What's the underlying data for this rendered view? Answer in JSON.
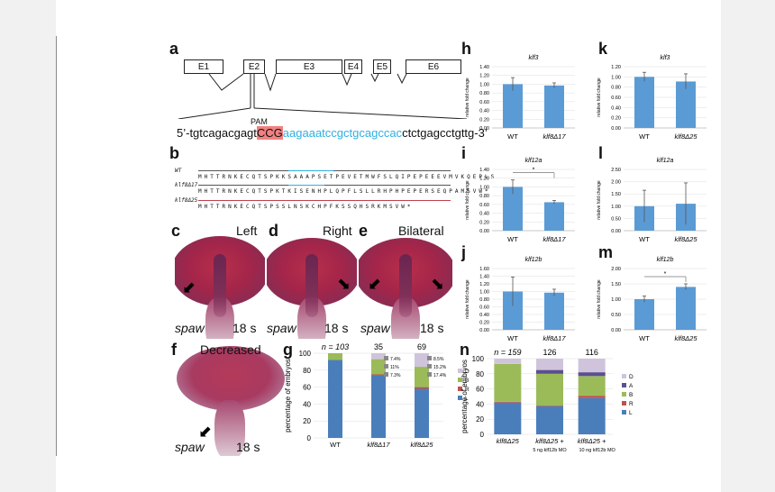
{
  "panels": {
    "a": {
      "label": "a",
      "exons": [
        "E1",
        "E2",
        "E3",
        "E4",
        "E5",
        "E6"
      ],
      "pam_label": "PAM",
      "seq_prefix": "5’-tgtcagacgagt",
      "seq_pam": "CCG",
      "seq_target": "aagaaatccgctgcagccac",
      "seq_suffix": "ctctgagcctgttg-3’",
      "colors": {
        "pam_bg": "#f28080",
        "target": "#2fb0e0"
      }
    },
    "b": {
      "label": "b",
      "rows": [
        "WT",
        "klf8Δ17",
        "klf8Δ25"
      ],
      "wt_aa": "M H T T R N K E C Q T S P K K S A A A P S E T P E V E T M W F S L Q I P E P E E E V M V K Q E P L S",
      "d17_aa": "M H T T R N K E C Q T S P K T K I S E N H P L Q P F L S L L R H P H P E P E R S E Q P A M S V W *",
      "d25_aa": "M H T T R N K E C Q T S P S S L N S K C H P F K S S Q H S R K M S V W *"
    },
    "c": {
      "label": "c",
      "side": "Left",
      "gene": "spaw",
      "stage": "18 s"
    },
    "d": {
      "label": "d",
      "side": "Right",
      "gene": "spaw",
      "stage": "18 s"
    },
    "e": {
      "label": "e",
      "side": "Bilateral",
      "gene": "spaw",
      "stage": "18 s"
    },
    "f": {
      "label": "f",
      "side": "Decreased",
      "gene": "spaw",
      "stage": "18 s"
    },
    "g": {
      "label": "g",
      "n_prefix": "n = 103",
      "n2": "35",
      "n3": "69"
    },
    "h": {
      "label": "h"
    },
    "i": {
      "label": "i"
    },
    "j": {
      "label": "j"
    },
    "k": {
      "label": "k"
    },
    "l": {
      "label": "l"
    },
    "m": {
      "label": "m"
    },
    "n": {
      "label": "n",
      "n_prefix": "n = 159",
      "n2": "126",
      "n3": "116"
    }
  },
  "chart_data": [
    {
      "id": "g",
      "type": "bar",
      "stacked": true,
      "ylabel": "percentage of embryos",
      "ylim": [
        0,
        100
      ],
      "yticks": [
        "0",
        "20",
        "40",
        "60",
        "80",
        "100"
      ],
      "categories": [
        "WT",
        "klf8Δ17",
        "klf8Δ25"
      ],
      "series": [
        {
          "name": "L",
          "color": "#4a7ebb",
          "values": [
            92,
            74,
            58
          ]
        },
        {
          "name": "R",
          "color": "#c0504d",
          "values": [
            0,
            1,
            2
          ]
        },
        {
          "name": "B",
          "color": "#9bbb59",
          "values": [
            8,
            18,
            24
          ]
        },
        {
          "name": "D",
          "color": "#d0c4dc",
          "values": [
            0,
            7,
            16
          ]
        }
      ],
      "annotations": {
        "klf8Δ17": [
          "7.4%",
          "11%",
          "7.3%"
        ],
        "klf8Δ25": [
          "8.5%",
          "15.2%",
          "17.4%"
        ]
      },
      "legend": [
        "D",
        "B",
        "R",
        "L"
      ]
    },
    {
      "id": "n",
      "type": "bar",
      "stacked": true,
      "ylabel": "percentage of embryos",
      "ylim": [
        0,
        100
      ],
      "yticks": [
        "0",
        "20",
        "40",
        "60",
        "80",
        "100"
      ],
      "categories": [
        "klf8Δ25",
        "klf8Δ25 + 5 ng klf12b MO",
        "klf8Δ25 + 10 ng klf12b MO"
      ],
      "cat_main": [
        "klf8Δ25",
        "klf8Δ25 +",
        "klf8Δ25 +"
      ],
      "cat_sub": [
        "",
        "5 ng klf12b MO",
        "10 ng klf12b MO"
      ],
      "series": [
        {
          "name": "L",
          "color": "#4a7ebb",
          "values": [
            42,
            37,
            48
          ]
        },
        {
          "name": "R",
          "color": "#c0504d",
          "values": [
            1,
            1,
            3
          ]
        },
        {
          "name": "B",
          "color": "#9bbb59",
          "values": [
            50,
            42,
            26
          ]
        },
        {
          "name": "A",
          "color": "#5b4f8f",
          "values": [
            0,
            5,
            5
          ]
        },
        {
          "name": "D",
          "color": "#d0c4dc",
          "values": [
            7,
            15,
            18
          ]
        }
      ],
      "legend": [
        "D",
        "A",
        "B",
        "R",
        "L"
      ]
    },
    {
      "id": "h",
      "type": "bar",
      "title": "klf3",
      "ylabel": "relative fold change",
      "ylim": [
        0,
        1.4
      ],
      "yticks": [
        "0.00",
        "0.20",
        "0.40",
        "0.60",
        "0.80",
        "1.00",
        "1.20",
        "1.40"
      ],
      "categories": [
        "WT",
        "klf8Δ17"
      ],
      "values": [
        1.0,
        0.97
      ],
      "errors": [
        0.15,
        0.06
      ]
    },
    {
      "id": "i",
      "type": "bar",
      "title": "klf12a",
      "ylabel": "relative fold change",
      "ylim": [
        0,
        1.4
      ],
      "yticks": [
        "0.00",
        "0.20",
        "0.40",
        "0.60",
        "0.80",
        "1.00",
        "1.20",
        "1.40"
      ],
      "categories": [
        "WT",
        "klf8Δ17"
      ],
      "values": [
        1.0,
        0.65
      ],
      "errors": [
        0.16,
        0.04
      ],
      "significance": "*"
    },
    {
      "id": "j",
      "type": "bar",
      "title": "klf12b",
      "ylabel": "relative fold change",
      "ylim": [
        0,
        1.6
      ],
      "yticks": [
        "0.00",
        "0.20",
        "0.40",
        "0.60",
        "0.80",
        "1.00",
        "1.20",
        "1.40",
        "1.60"
      ],
      "categories": [
        "WT",
        "klf8Δ17"
      ],
      "values": [
        1.0,
        0.97
      ],
      "errors": [
        0.38,
        0.09
      ]
    },
    {
      "id": "k",
      "type": "bar",
      "title": "klf3",
      "ylabel": "relative fold change",
      "ylim": [
        0,
        1.2
      ],
      "yticks": [
        "0.00",
        "0.20",
        "0.40",
        "0.60",
        "0.80",
        "1.00",
        "1.20"
      ],
      "categories": [
        "WT",
        "klf8Δ25"
      ],
      "values": [
        1.0,
        0.91
      ],
      "errors": [
        0.09,
        0.15
      ]
    },
    {
      "id": "l",
      "type": "bar",
      "title": "klf12a",
      "ylabel": "relative fold change",
      "ylim": [
        0,
        2.5
      ],
      "yticks": [
        "0.00",
        "0.50",
        "1.00",
        "1.50",
        "2.00",
        "2.50"
      ],
      "categories": [
        "WT",
        "klf8Δ25"
      ],
      "values": [
        1.0,
        1.1
      ],
      "errors": [
        0.65,
        0.85
      ]
    },
    {
      "id": "m",
      "type": "bar",
      "title": "klf12b",
      "ylabel": "relative fold change",
      "ylim": [
        0,
        2.0
      ],
      "yticks": [
        "0.00",
        "0.50",
        "1.00",
        "1.50",
        "2.00"
      ],
      "categories": [
        "WT",
        "klf8Δ25"
      ],
      "values": [
        1.0,
        1.4
      ],
      "errors": [
        0.1,
        0.1
      ],
      "significance": "*"
    }
  ]
}
